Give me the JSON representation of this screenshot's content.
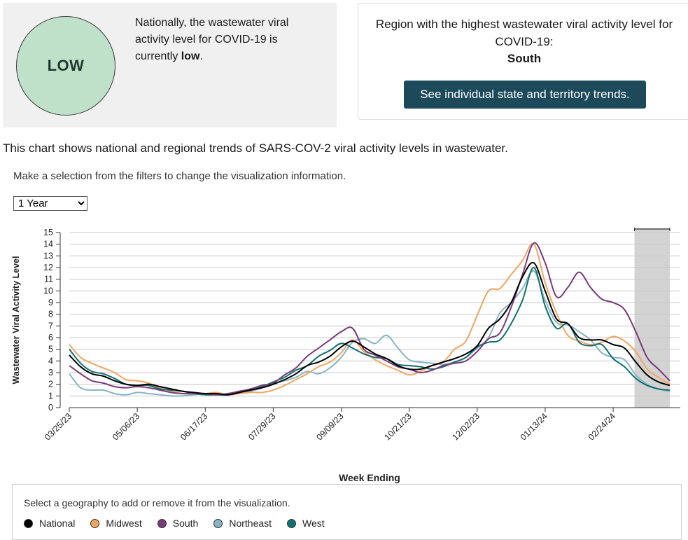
{
  "summary": {
    "level": "LOW",
    "national_text_pre": "Nationally, the wastewater viral activity level for COVID-19 is currently ",
    "national_text_level": "low",
    "national_text_post": ".",
    "region_label": "Region with the highest wastewater viral activity level for COVID-19:",
    "region_name": "South",
    "state_button": "See individual state and territory trends."
  },
  "chart_description": "This chart shows national and regional trends of SARS-COV-2 viral activity levels in wastewater.",
  "filter": {
    "instruction": "Make a selection from the filters to change the visualization information.",
    "selected": "1 Year",
    "options": [
      "1 Year"
    ]
  },
  "legend": {
    "instruction": "Select a geography to add or remove it from the visualization.",
    "items": [
      {
        "name": "National",
        "color": "#000000"
      },
      {
        "name": "Midwest",
        "color": "#f2a55f"
      },
      {
        "name": "South",
        "color": "#7a3a7a"
      },
      {
        "name": "Northeast",
        "color": "#86b4c6"
      },
      {
        "name": "West",
        "color": "#117070"
      }
    ]
  },
  "colors": {
    "low": "#bfe0c9",
    "button": "#1d4a5a",
    "shade": "#d3d3d3"
  },
  "chart_data": {
    "type": "line",
    "title": "",
    "xlabel": "Week Ending",
    "ylabel": "Wastewater Viral Activity Level",
    "ylim": [
      0,
      15
    ],
    "yticks": [
      0,
      1,
      2,
      3,
      4,
      5,
      6,
      7,
      8,
      9,
      10,
      11,
      12,
      13,
      14,
      15
    ],
    "x_start": "03/25/23",
    "x_tick_labels": [
      "03/25/23",
      "05/06/23",
      "06/17/23",
      "07/29/23",
      "09/09/23",
      "10/21/23",
      "12/02/23",
      "01/13/24",
      "02/24/24"
    ],
    "x_tick_index": [
      0,
      6,
      12,
      18,
      24,
      30,
      36,
      42,
      48
    ],
    "shaded_from_index": 50,
    "shaded_to_index": 52,
    "series": [
      {
        "name": "National",
        "color": "#000000",
        "values": [
          4.5,
          3.5,
          2.9,
          2.7,
          2.3,
          2.0,
          1.9,
          2.0,
          1.8,
          1.6,
          1.4,
          1.3,
          1.2,
          1.2,
          1.1,
          1.3,
          1.5,
          1.7,
          2.0,
          2.4,
          2.9,
          3.6,
          3.9,
          4.4,
          5.2,
          5.7,
          5.2,
          4.6,
          4.2,
          3.6,
          3.3,
          3.3,
          3.6,
          3.9,
          4.2,
          4.6,
          5.3,
          6.8,
          7.6,
          9.0,
          11.2,
          12.4,
          10.0,
          7.6,
          7.2,
          6.0,
          5.8,
          5.8,
          5.4,
          5.1,
          3.9,
          2.8,
          2.2,
          1.9
        ]
      },
      {
        "name": "Midwest",
        "color": "#f2a55f",
        "values": [
          5.4,
          4.3,
          3.8,
          3.4,
          3.0,
          2.4,
          2.3,
          2.1,
          1.7,
          1.4,
          1.2,
          1.2,
          1.2,
          1.3,
          1.1,
          1.2,
          1.3,
          1.3,
          1.5,
          1.9,
          2.4,
          2.9,
          3.5,
          3.9,
          4.7,
          5.8,
          4.8,
          4.1,
          3.6,
          3.2,
          2.8,
          3.1,
          3.6,
          3.9,
          5.0,
          5.7,
          7.9,
          10.0,
          10.2,
          11.4,
          12.6,
          14.0,
          10.7,
          8.1,
          6.2,
          5.7,
          5.4,
          5.6,
          6.1,
          5.7,
          4.8,
          3.3,
          2.6,
          2.0
        ]
      },
      {
        "name": "South",
        "color": "#7a3a7a",
        "values": [
          3.6,
          2.9,
          2.3,
          2.1,
          1.8,
          1.7,
          1.8,
          1.7,
          1.5,
          1.3,
          1.2,
          1.2,
          1.2,
          1.1,
          1.2,
          1.4,
          1.6,
          1.9,
          2.1,
          2.8,
          3.4,
          4.4,
          5.1,
          5.8,
          6.5,
          6.8,
          5.0,
          4.5,
          4.0,
          3.5,
          3.3,
          3.0,
          3.2,
          3.6,
          3.8,
          4.0,
          4.8,
          5.9,
          6.4,
          8.6,
          11.4,
          14.1,
          12.4,
          9.5,
          10.3,
          11.6,
          10.3,
          9.3,
          9.0,
          8.4,
          6.5,
          4.3,
          3.3,
          2.3
        ]
      },
      {
        "name": "Northeast",
        "color": "#86b4c6",
        "values": [
          2.9,
          1.7,
          1.5,
          1.5,
          1.2,
          1.1,
          1.3,
          1.2,
          1.1,
          1.0,
          1.0,
          1.1,
          1.2,
          1.1,
          1.1,
          1.2,
          1.4,
          1.7,
          2.1,
          2.3,
          2.6,
          3.1,
          2.9,
          3.4,
          4.3,
          5.6,
          5.9,
          5.5,
          6.2,
          5.1,
          4.1,
          3.9,
          3.8,
          3.7,
          3.9,
          4.3,
          5.1,
          6.0,
          8.1,
          9.0,
          10.2,
          11.7,
          9.2,
          7.3,
          7.1,
          6.5,
          5.8,
          4.7,
          4.3,
          4.1,
          2.8,
          2.0,
          1.6,
          1.4
        ]
      },
      {
        "name": "West",
        "color": "#117070",
        "values": [
          5.0,
          3.8,
          3.1,
          2.9,
          2.5,
          2.0,
          1.9,
          1.9,
          1.6,
          1.5,
          1.4,
          1.2,
          1.1,
          1.1,
          1.1,
          1.3,
          1.6,
          1.8,
          2.2,
          2.6,
          3.2,
          3.6,
          4.4,
          4.9,
          5.5,
          5.1,
          4.6,
          4.3,
          4.2,
          3.7,
          3.6,
          3.5,
          3.3,
          3.5,
          3.9,
          4.3,
          5.2,
          5.6,
          5.8,
          7.2,
          9.2,
          12.0,
          8.7,
          6.8,
          7.2,
          5.6,
          5.3,
          5.4,
          4.2,
          3.5,
          2.5,
          1.9,
          1.6,
          1.5
        ]
      }
    ]
  }
}
